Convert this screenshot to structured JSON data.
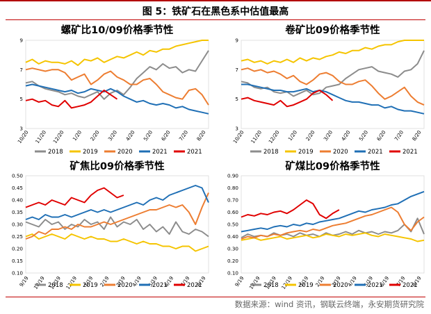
{
  "figure_title": "图 5：铁矿石在黑色系中估值最高",
  "source": "数据来源：wind 资讯，钢联云终端，永安期货研究院",
  "colors": {
    "2018": "#8c8c8c",
    "2019": "#f5c400",
    "2020": "#ed7d31",
    "2021": "#1f6fb5",
    "2021b": "#e00000"
  },
  "chart_data": [
    {
      "type": "line",
      "title": "螺矿比10/09价格季节性",
      "x_ticks": [
        "10/20",
        "11/20",
        "12/20",
        "1/20",
        "2/20",
        "3/20",
        "4/20",
        "5/20",
        "6/20",
        "7/20",
        "8/20"
      ],
      "ylim": [
        3,
        9
      ],
      "y_ticks": [
        "3",
        "5",
        "7",
        "9"
      ],
      "legend": [
        "2018",
        "2019",
        "2020",
        "2021",
        "2021"
      ],
      "series": [
        {
          "name": "2018",
          "color": "#8c8c8c",
          "values": [
            6.1,
            6.2,
            5.9,
            5.7,
            5.6,
            5.5,
            5.3,
            5.4,
            5.2,
            5.1,
            5.3,
            5.5,
            5.0,
            5.4,
            5.6,
            5.3,
            5.8,
            6.4,
            6.8,
            7.2,
            7.0,
            7.4,
            7.1,
            7.2,
            6.8,
            7.0,
            6.9,
            7.6,
            8.3
          ]
        },
        {
          "name": "2019",
          "color": "#f5c400",
          "values": [
            7.5,
            7.7,
            7.4,
            7.6,
            7.5,
            7.5,
            7.4,
            7.6,
            7.3,
            7.7,
            7.6,
            7.8,
            7.5,
            7.7,
            7.9,
            7.8,
            8.0,
            8.2,
            8.0,
            8.3,
            8.2,
            8.4,
            8.4,
            8.6,
            8.7,
            8.8,
            8.9,
            9.0,
            9.0
          ]
        },
        {
          "name": "2020",
          "color": "#ed7d31",
          "values": [
            7.0,
            7.1,
            7.0,
            6.9,
            7.0,
            7.0,
            6.8,
            6.3,
            6.5,
            6.7,
            6.0,
            6.3,
            6.7,
            6.9,
            6.5,
            6.3,
            6.0,
            6.0,
            6.3,
            6.4,
            6.0,
            5.5,
            5.3,
            5.1,
            5.0,
            5.6,
            5.7,
            5.3,
            4.6
          ]
        },
        {
          "name": "2021",
          "color": "#1f6fb5",
          "values": [
            5.9,
            6.0,
            5.9,
            5.8,
            5.7,
            5.6,
            5.5,
            5.6,
            5.4,
            5.5,
            5.7,
            5.6,
            5.5,
            5.7,
            5.5,
            5.2,
            5.0,
            4.8,
            4.9,
            4.7,
            4.6,
            4.7,
            4.6,
            4.4,
            4.5,
            4.3,
            4.2,
            4.1,
            4.0
          ]
        },
        {
          "name": "2021",
          "color": "#e00000",
          "values": [
            4.9,
            5.0,
            4.8,
            4.9,
            4.6,
            4.5,
            4.9,
            4.4,
            4.5,
            4.6,
            4.8,
            5.2,
            5.6,
            5.3,
            5.0,
            null,
            null,
            null,
            null,
            null,
            null,
            null,
            null,
            null,
            null,
            null,
            null,
            null,
            null
          ]
        }
      ]
    },
    {
      "type": "line",
      "title": "卷矿比09价格季节性",
      "x_ticks": [
        "10/20",
        "11/20",
        "12/20",
        "1/20",
        "2/20",
        "3/20",
        "4/20",
        "5/20",
        "6/20",
        "7/20",
        "8/20"
      ],
      "ylim": [
        3,
        9
      ],
      "y_ticks": [
        "3",
        "5",
        "7",
        "9"
      ],
      "legend": [
        "2018",
        "2019",
        "2020",
        "2021",
        "2021"
      ],
      "series": [
        {
          "name": "2018",
          "color": "#8c8c8c",
          "values": [
            6.2,
            6.1,
            5.8,
            5.7,
            5.8,
            5.5,
            5.4,
            5.5,
            5.2,
            5.4,
            5.6,
            5.3,
            5.4,
            5.8,
            5.9,
            6.0,
            6.4,
            6.7,
            7.0,
            7.1,
            7.2,
            6.9,
            6.8,
            6.7,
            6.5,
            6.9,
            7.0,
            7.4,
            8.3
          ]
        },
        {
          "name": "2019",
          "color": "#f5c400",
          "values": [
            7.6,
            7.7,
            7.5,
            7.6,
            7.4,
            7.6,
            7.5,
            7.7,
            7.5,
            7.8,
            7.6,
            7.8,
            7.7,
            7.9,
            8.0,
            8.2,
            8.1,
            8.3,
            8.3,
            8.5,
            8.4,
            8.6,
            8.7,
            8.7,
            8.9,
            9.0,
            9.0,
            9.0,
            9.0
          ]
        },
        {
          "name": "2020",
          "color": "#ed7d31",
          "values": [
            7.0,
            7.1,
            6.9,
            7.0,
            6.8,
            6.9,
            6.7,
            6.4,
            6.6,
            6.2,
            6.0,
            6.3,
            6.7,
            6.8,
            6.6,
            6.2,
            6.0,
            6.0,
            6.2,
            6.3,
            5.9,
            5.4,
            5.0,
            5.2,
            5.5,
            5.8,
            5.2,
            4.8,
            4.6
          ]
        },
        {
          "name": "2021",
          "color": "#1f6fb5",
          "values": [
            6.0,
            6.0,
            5.9,
            5.8,
            5.7,
            5.6,
            5.6,
            5.5,
            5.5,
            5.6,
            5.7,
            5.5,
            5.6,
            5.5,
            5.3,
            5.1,
            4.9,
            4.8,
            4.8,
            4.7,
            4.6,
            4.6,
            4.4,
            4.5,
            4.3,
            4.2,
            4.2,
            4.1,
            4.0
          ]
        },
        {
          "name": "2021",
          "color": "#e00000",
          "values": [
            5.0,
            5.1,
            4.9,
            4.8,
            4.7,
            4.6,
            4.9,
            4.5,
            4.6,
            4.8,
            5.0,
            5.4,
            5.6,
            5.3,
            4.9,
            null,
            null,
            null,
            null,
            null,
            null,
            null,
            null,
            null,
            null,
            null,
            null,
            null,
            null
          ]
        }
      ]
    },
    {
      "type": "line",
      "title": "矿焦比09价格季节性",
      "x_ticks": [
        "9/19",
        "10/19",
        "11/19",
        "12/19",
        "1/19",
        "2/19",
        "3/19",
        "4/19",
        "5/19",
        "6/19",
        "7/19",
        "8/19"
      ],
      "ylim": [
        0.1,
        0.5
      ],
      "y_ticks": [
        "0.10",
        "0.15",
        "0.20",
        "0.25",
        "0.30",
        "0.35",
        "0.40",
        "0.45",
        "0.50"
      ],
      "legend": [
        "2018",
        "2019",
        "2020",
        "2021",
        "2021"
      ],
      "series": [
        {
          "name": "2018",
          "color": "#8c8c8c",
          "values": [
            0.31,
            0.3,
            0.29,
            0.32,
            0.3,
            0.31,
            0.28,
            0.3,
            0.29,
            0.32,
            0.3,
            0.31,
            0.28,
            0.33,
            0.29,
            0.31,
            0.3,
            0.32,
            0.28,
            0.3,
            0.27,
            0.29,
            0.26,
            0.31,
            0.27,
            0.26,
            0.28,
            0.27,
            0.25
          ]
        },
        {
          "name": "2019",
          "color": "#f5c400",
          "values": [
            0.25,
            0.26,
            0.24,
            0.25,
            0.26,
            0.25,
            0.24,
            0.26,
            0.25,
            0.24,
            0.25,
            0.24,
            0.24,
            0.23,
            0.23,
            0.24,
            0.23,
            0.22,
            0.23,
            0.22,
            0.22,
            0.21,
            0.21,
            0.2,
            0.21,
            0.21,
            0.19,
            0.2,
            0.21
          ]
        },
        {
          "name": "2020",
          "color": "#ed7d31",
          "values": [
            0.24,
            0.25,
            0.27,
            0.26,
            0.28,
            0.28,
            0.29,
            0.28,
            0.3,
            0.29,
            0.29,
            0.3,
            0.31,
            0.3,
            0.31,
            0.32,
            0.33,
            0.34,
            0.35,
            0.36,
            0.36,
            0.37,
            0.38,
            0.37,
            0.38,
            0.35,
            0.3,
            0.37,
            0.43
          ]
        },
        {
          "name": "2021",
          "color": "#1f6fb5",
          "values": [
            0.32,
            0.33,
            0.32,
            0.34,
            0.33,
            0.33,
            0.34,
            0.33,
            0.34,
            0.35,
            0.36,
            0.35,
            0.36,
            0.35,
            0.36,
            0.37,
            0.38,
            0.39,
            0.38,
            0.4,
            0.41,
            0.4,
            0.42,
            0.43,
            0.44,
            0.45,
            0.46,
            0.45,
            0.39
          ]
        },
        {
          "name": "2021",
          "color": "#e00000",
          "values": [
            0.37,
            0.38,
            0.39,
            0.38,
            0.4,
            0.39,
            0.38,
            0.41,
            0.4,
            0.39,
            0.42,
            0.44,
            0.45,
            0.43,
            0.41,
            0.42,
            null,
            null,
            null,
            null,
            null,
            null,
            null,
            null,
            null,
            null,
            null,
            null,
            null
          ]
        }
      ]
    },
    {
      "type": "line",
      "title": "矿煤比09价格季节性",
      "x_ticks": [
        "9/19",
        "10/19",
        "11/19",
        "12/19",
        "1/19",
        "2/19",
        "3/19",
        "4/19",
        "5/19",
        "6/19",
        "7/19",
        "8/19"
      ],
      "ylim": [
        0.1,
        0.9
      ],
      "y_ticks": [
        "0.10",
        "0.20",
        "0.30",
        "0.40",
        "0.50",
        "0.60",
        "0.70",
        "0.80",
        "0.90"
      ],
      "legend": [
        "2018",
        "2019",
        "2020",
        "2021",
        "2021"
      ],
      "series": [
        {
          "name": "2018",
          "color": "#8c8c8c",
          "values": [
            0.39,
            0.42,
            0.4,
            0.41,
            0.4,
            0.43,
            0.41,
            0.42,
            0.4,
            0.43,
            0.41,
            0.42,
            0.4,
            0.43,
            0.41,
            0.42,
            0.44,
            0.42,
            0.45,
            0.43,
            0.44,
            0.42,
            0.44,
            0.43,
            0.45,
            0.5,
            0.44,
            0.55,
            0.42
          ]
        },
        {
          "name": "2019",
          "color": "#f5c400",
          "values": [
            0.37,
            0.38,
            0.39,
            0.37,
            0.38,
            0.39,
            0.4,
            0.38,
            0.39,
            0.4,
            0.41,
            0.39,
            0.4,
            0.42,
            0.41,
            0.4,
            0.42,
            0.41,
            0.42,
            0.43,
            0.41,
            0.4,
            0.42,
            0.41,
            0.4,
            0.39,
            0.38,
            0.36,
            0.37
          ]
        },
        {
          "name": "2020",
          "color": "#ed7d31",
          "values": [
            0.38,
            0.4,
            0.39,
            0.41,
            0.4,
            0.42,
            0.41,
            0.43,
            0.44,
            0.45,
            0.44,
            0.46,
            0.45,
            0.47,
            0.49,
            0.5,
            0.51,
            0.53,
            0.55,
            0.57,
            0.58,
            0.6,
            0.62,
            0.64,
            0.6,
            0.5,
            0.45,
            0.52,
            0.56
          ]
        },
        {
          "name": "2021",
          "color": "#1f6fb5",
          "values": [
            0.44,
            0.45,
            0.46,
            0.47,
            0.46,
            0.48,
            0.49,
            0.48,
            0.5,
            0.49,
            0.51,
            0.5,
            0.52,
            0.53,
            0.54,
            0.55,
            0.57,
            0.59,
            0.61,
            0.6,
            0.62,
            0.63,
            0.64,
            0.66,
            0.67,
            0.7,
            0.73,
            0.75,
            0.77
          ]
        },
        {
          "name": "2021",
          "color": "#e00000",
          "values": [
            0.56,
            0.58,
            0.57,
            0.59,
            0.58,
            0.6,
            0.61,
            0.59,
            0.62,
            0.66,
            0.7,
            0.67,
            0.58,
            0.55,
            0.59,
            0.62,
            null,
            null,
            null,
            null,
            null,
            null,
            null,
            null,
            null,
            null,
            null,
            null,
            null
          ]
        }
      ]
    }
  ]
}
